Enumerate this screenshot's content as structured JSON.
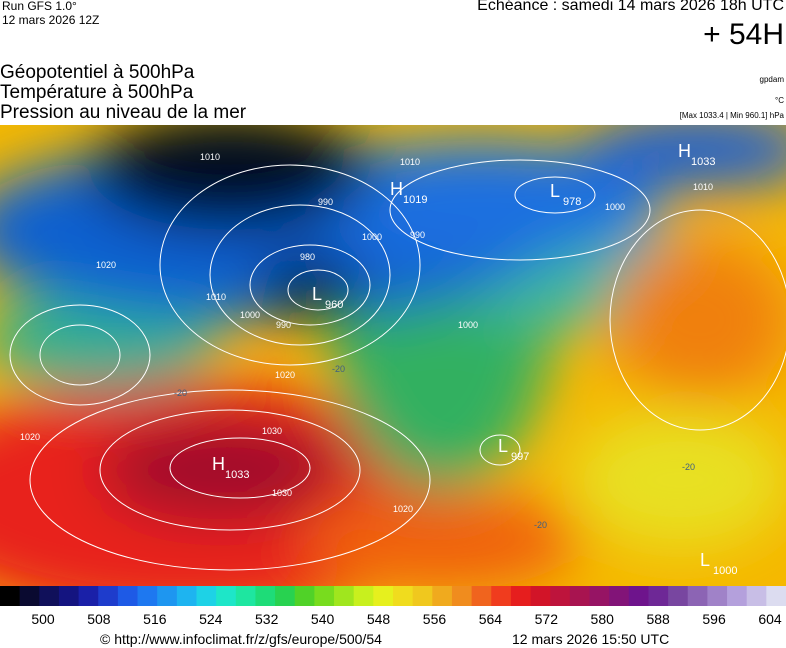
{
  "header": {
    "run": "Run GFS 1.0°",
    "run_date": "12 mars 2026 12Z",
    "valid": "Echéance : samedi 14 mars 2026 18h UTC",
    "lead": "+ 54H"
  },
  "fields": [
    "Géopotentiel à 500hPa",
    "Température à 500hPa",
    "Pression au niveau de la mer"
  ],
  "units": {
    "geopotential": "gpdam",
    "temperature": "°C",
    "pressure_range": "[Max 1033.4 | Min 960.1] hPa"
  },
  "centers": [
    {
      "type": "H",
      "value": 1033
    },
    {
      "type": "L",
      "value": 960
    },
    {
      "type": "H",
      "value": 1019
    },
    {
      "type": "L",
      "value": 978
    },
    {
      "type": "H",
      "value": 1033
    },
    {
      "type": "L",
      "value": 997
    },
    {
      "type": "L",
      "value": 1000
    }
  ],
  "isobar_labels": [
    1010,
    990,
    980,
    1000,
    990,
    990,
    1000,
    1010,
    1000,
    1010,
    1020,
    1020,
    1030,
    1030,
    1020,
    1020,
    1000,
    1010
  ],
  "temperature_labels": [
    -20,
    -20,
    -20,
    -20
  ],
  "colorbar": {
    "ticks": [
      500,
      508,
      516,
      524,
      532,
      540,
      548,
      556,
      564,
      572,
      580,
      588,
      596,
      604
    ]
  },
  "footer": {
    "source": "© http://www.infoclimat.fr/z/gfs/europe/500/54",
    "generated": "12 mars 2026 15:50 UTC"
  }
}
